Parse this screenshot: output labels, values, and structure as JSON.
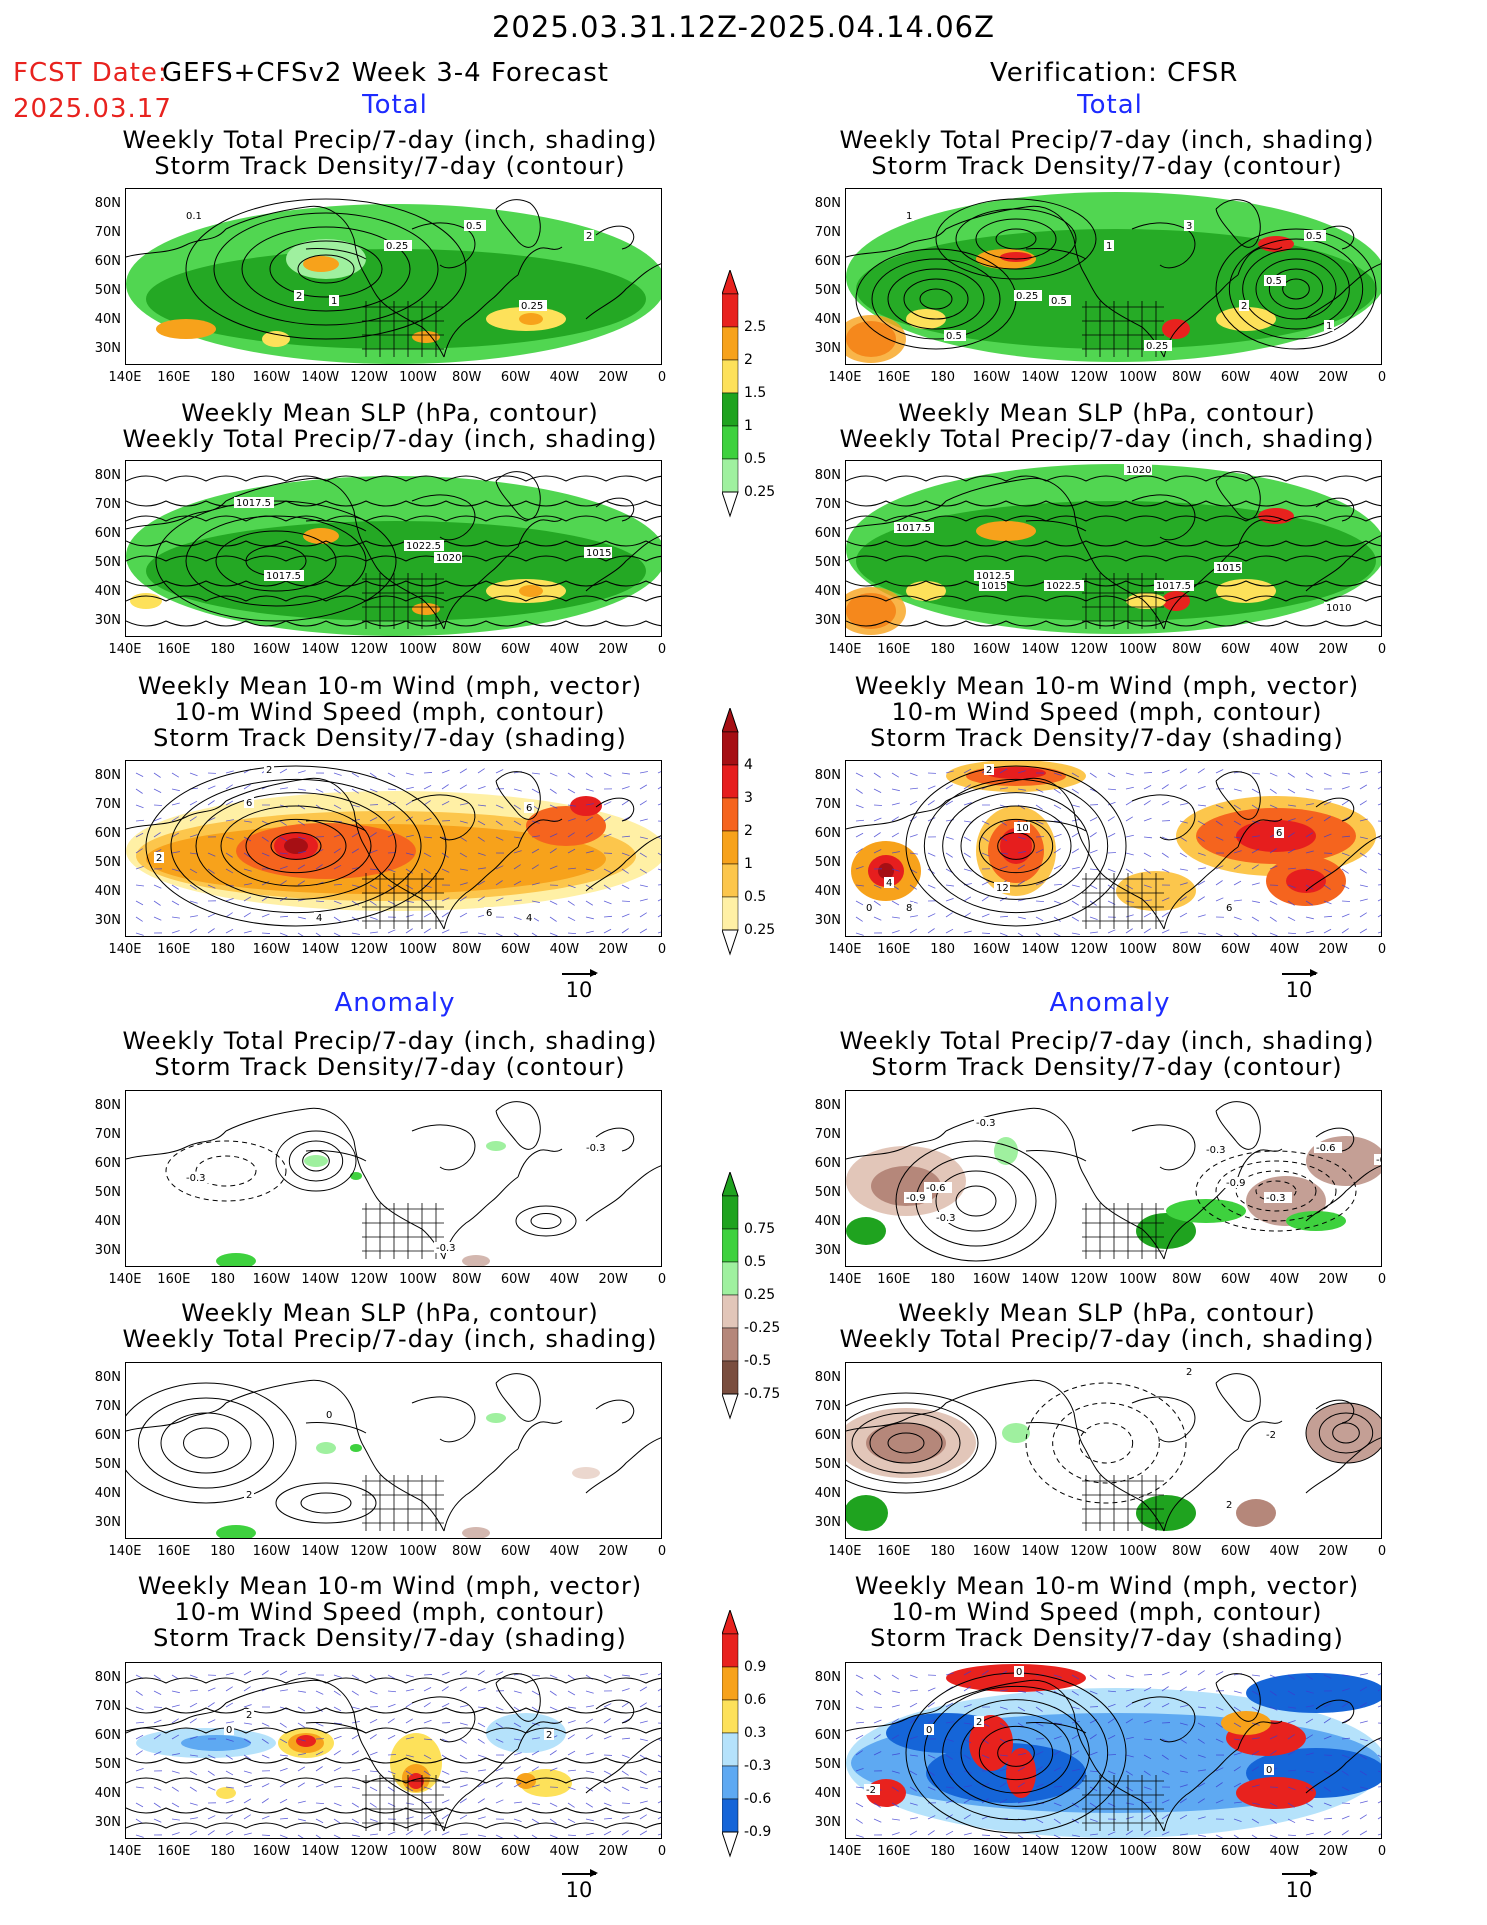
{
  "header": {
    "date_range": "2025.03.31.12Z-2025.04.14.06Z",
    "fcst_label": "FCST Date:",
    "fcst_date": "2025.03.17",
    "forecast_name": "GEFS+CFSv2 Week 3-4 Forecast",
    "verification": "Verification: CFSR"
  },
  "sections": {
    "total": "Total",
    "anomaly": "Anomaly"
  },
  "panels": {
    "precip_storm": {
      "line1": "Weekly Total Precip/7-day (inch, shading)",
      "line2": "Storm Track Density/7-day (contour)"
    },
    "slp_precip": {
      "line1": "Weekly Mean SLP (hPa, contour)",
      "line2": "Weekly Total Precip/7-day (inch, shading)"
    },
    "wind_storm": {
      "line1": "Weekly Mean 10-m Wind (mph, vector)",
      "line2": "10-m Wind Speed (mph, contour)",
      "line3": "Storm Track Density/7-day (shading)"
    }
  },
  "axes": {
    "lat_labels": [
      "80N",
      "70N",
      "60N",
      "50N",
      "40N",
      "30N"
    ],
    "lon_labels": [
      "140E",
      "160E",
      "180",
      "160W",
      "140W",
      "120W",
      "100W",
      "80W",
      "60W",
      "40W",
      "20W",
      "0"
    ]
  },
  "vector_ref": "10",
  "colorbars": {
    "precip_total": {
      "labels": [
        "2.5",
        "2",
        "1.5",
        "1",
        "0.5",
        "0.25"
      ],
      "colors": [
        "#e8221e",
        "#f7a21b",
        "#fde15a",
        "#1fa31f",
        "#3ed13e",
        "#9ff09f"
      ]
    },
    "storm_total": {
      "labels": [
        "4",
        "3",
        "2",
        "1",
        "0.5",
        "0.25"
      ],
      "colors": [
        "#a60f14",
        "#e61e1e",
        "#f5641e",
        "#f7a21b",
        "#fcc64c",
        "#fff0a5"
      ]
    },
    "precip_anom": {
      "labels": [
        "0.75",
        "0.5",
        "0.25",
        "-0.25",
        "-0.5",
        "-0.75"
      ],
      "colors": [
        "#1fa31f",
        "#3ed13e",
        "#9ff09f",
        "#e2c6b9",
        "#b5877a",
        "#7a4e3f"
      ]
    },
    "storm_anom": {
      "labels": [
        "0.9",
        "0.6",
        "0.3",
        "-0.3",
        "-0.6",
        "-0.9"
      ],
      "colors": [
        "#e8221e",
        "#f7a21b",
        "#fde15a",
        "#b5e2fb",
        "#5ea9f2",
        "#1565d8"
      ]
    }
  },
  "map_annotations": {
    "fc_precip": [
      "0.1",
      "0.25",
      "2",
      "1",
      "0.5",
      "0.25",
      "2"
    ],
    "ob_precip": [
      "1",
      "1",
      "0.25",
      "0.5",
      "3",
      "2",
      "0.5",
      "0.5",
      "0.25",
      "1",
      "0.5"
    ],
    "fc_slp": [
      "1017.5",
      "1017.5",
      "1022.5",
      "1020",
      "1015"
    ],
    "ob_slp": [
      "1020",
      "1017.5",
      "1012.5",
      "1015",
      "1022.5",
      "1017.5",
      "1015",
      "1010"
    ],
    "fc_wind": [
      "2",
      "6",
      "2",
      "4",
      "6",
      "4",
      "6"
    ],
    "ob_wind": [
      "2",
      "10",
      "4",
      "12",
      "6",
      "8",
      "6",
      "0"
    ],
    "fc_anom_precip": [
      "-0.3",
      "-0.3",
      "-0.3"
    ],
    "ob_anom_precip": [
      "-0.3",
      "-0.6",
      "-0.9",
      "-0.3",
      "-0.3",
      "-0.9",
      "-0.3",
      "-0.6",
      "-0.9"
    ],
    "fc_anom_slp": [
      "2",
      "0"
    ],
    "ob_anom_slp": [
      "2",
      "-2",
      "2"
    ],
    "fc_anom_wind": [
      "2",
      "0",
      "2"
    ],
    "ob_anom_wind": [
      "0",
      "0",
      "2",
      "-2",
      "0"
    ]
  }
}
